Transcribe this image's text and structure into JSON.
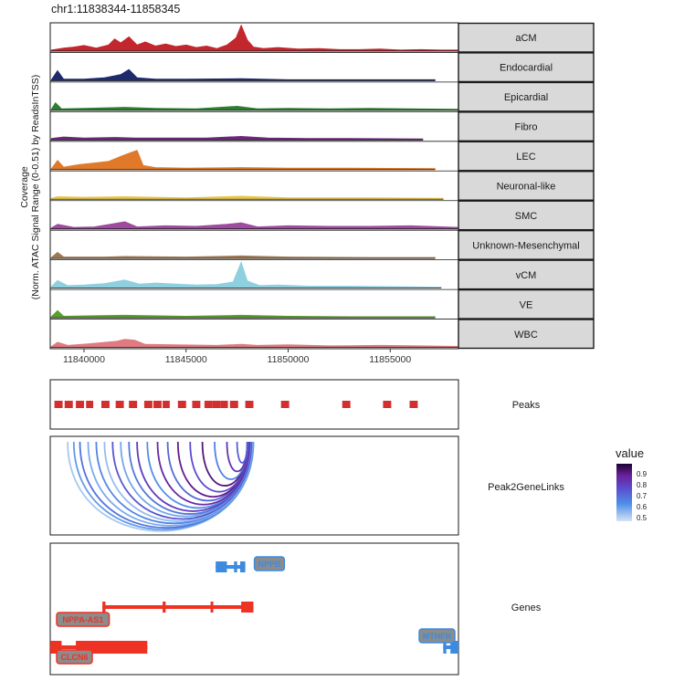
{
  "region_title": "chr1:11838344-11858345",
  "ylabel_line1": "Coverage",
  "ylabel_line2": "(Norm. ATAC Signal Range (0-0.51) by ReadsInTSS)",
  "x_ticks": [
    "11840000",
    "11845000",
    "11850000",
    "11855000"
  ],
  "panel_labels": {
    "peaks": "Peaks",
    "links": "Peak2GeneLinks",
    "genes": "Genes"
  },
  "legend": {
    "title": "value",
    "ticks": [
      "0.9",
      "0.8",
      "0.7",
      "0.6",
      "0.5"
    ]
  },
  "gene_labels": [
    "NPPB",
    "NPPA-AS1",
    "CLCN6",
    "MTHFR"
  ],
  "colors": {
    "aCM": "#c2272d",
    "Endocardial": "#1d2a6b",
    "Epicardial": "#2f7d32",
    "Fibro": "#6a2a7a",
    "LEC": "#e07a2a",
    "Neuronal-like": "#e6c64a",
    "SMC": "#9e4a9e",
    "Unknown-Mesenchymal": "#a07850",
    "vCM": "#8ecfe0",
    "VE": "#5aa02c",
    "WBC": "#e07a80",
    "peak": "#d32f2f",
    "gene_minus": "#ee3224",
    "gene_plus": "#3d8be0"
  },
  "chart_data": [
    {
      "type": "area",
      "title": "chr1:11838344-11858345",
      "xlabel": "",
      "ylabel": "Coverage (Norm. ATAC Signal Range (0-0.51) by ReadsInTSS)",
      "xlim": [
        11838344,
        11858345
      ],
      "ylim": [
        0,
        0.51
      ],
      "grid": false,
      "series": [
        {
          "name": "aCM",
          "points": [
            [
              11838400,
              0.02
            ],
            [
              11839000,
              0.06
            ],
            [
              11839500,
              0.08
            ],
            [
              11840000,
              0.11
            ],
            [
              11840600,
              0.06
            ],
            [
              11841200,
              0.12
            ],
            [
              11841500,
              0.24
            ],
            [
              11841800,
              0.16
            ],
            [
              11842200,
              0.28
            ],
            [
              11842600,
              0.12
            ],
            [
              11843000,
              0.18
            ],
            [
              11843500,
              0.1
            ],
            [
              11844000,
              0.14
            ],
            [
              11844500,
              0.09
            ],
            [
              11845000,
              0.12
            ],
            [
              11845500,
              0.07
            ],
            [
              11846000,
              0.1
            ],
            [
              11846500,
              0.05
            ],
            [
              11847000,
              0.12
            ],
            [
              11847450,
              0.26
            ],
            [
              11847700,
              0.51
            ],
            [
              11848000,
              0.22
            ],
            [
              11848300,
              0.08
            ],
            [
              11848800,
              0.05
            ],
            [
              11849500,
              0.07
            ],
            [
              11850500,
              0.04
            ],
            [
              11851500,
              0.05
            ],
            [
              11852500,
              0.03
            ],
            [
              11853500,
              0.03
            ],
            [
              11854500,
              0.04
            ],
            [
              11855500,
              0.02
            ],
            [
              11856500,
              0.03
            ],
            [
              11857500,
              0.02
            ],
            [
              11858300,
              0.02
            ]
          ]
        },
        {
          "name": "Endocardial",
          "points": [
            [
              11838400,
              0.02
            ],
            [
              11838700,
              0.2
            ],
            [
              11839000,
              0.03
            ],
            [
              11840000,
              0.03
            ],
            [
              11841000,
              0.06
            ],
            [
              11841800,
              0.12
            ],
            [
              11842200,
              0.22
            ],
            [
              11842600,
              0.06
            ],
            [
              11843500,
              0.03
            ],
            [
              11845000,
              0.03
            ],
            [
              11847700,
              0.04
            ],
            [
              11850000,
              0.02
            ],
            [
              11853000,
              0.02
            ],
            [
              11857200,
              0.02
            ]
          ]
        },
        {
          "name": "Epicardial",
          "points": [
            [
              11838400,
              0.02
            ],
            [
              11838600,
              0.15
            ],
            [
              11838900,
              0.03
            ],
            [
              11840000,
              0.04
            ],
            [
              11842000,
              0.06
            ],
            [
              11843500,
              0.04
            ],
            [
              11845500,
              0.03
            ],
            [
              11847500,
              0.08
            ],
            [
              11848500,
              0.03
            ],
            [
              11850000,
              0.04
            ],
            [
              11852000,
              0.03
            ],
            [
              11854000,
              0.04
            ],
            [
              11856000,
              0.03
            ],
            [
              11858300,
              0.02
            ]
          ]
        },
        {
          "name": "Fibro",
          "points": [
            [
              11838400,
              0.03
            ],
            [
              11839000,
              0.06
            ],
            [
              11840000,
              0.04
            ],
            [
              11841500,
              0.05
            ],
            [
              11842500,
              0.04
            ],
            [
              11844000,
              0.04
            ],
            [
              11846000,
              0.04
            ],
            [
              11847700,
              0.07
            ],
            [
              11849000,
              0.04
            ],
            [
              11851000,
              0.03
            ],
            [
              11853000,
              0.03
            ],
            [
              11856600,
              0.02
            ]
          ]
        },
        {
          "name": "LEC",
          "points": [
            [
              11838400,
              0.02
            ],
            [
              11838700,
              0.18
            ],
            [
              11839000,
              0.05
            ],
            [
              11839800,
              0.1
            ],
            [
              11840500,
              0.13
            ],
            [
              11841200,
              0.16
            ],
            [
              11841800,
              0.26
            ],
            [
              11842200,
              0.32
            ],
            [
              11842600,
              0.38
            ],
            [
              11842900,
              0.08
            ],
            [
              11843500,
              0.04
            ],
            [
              11845000,
              0.03
            ],
            [
              11847700,
              0.04
            ],
            [
              11850000,
              0.03
            ],
            [
              11853000,
              0.03
            ],
            [
              11857200,
              0.02
            ]
          ]
        },
        {
          "name": "Neuronal-like",
          "points": [
            [
              11838400,
              0.02
            ],
            [
              11838700,
              0.05
            ],
            [
              11840000,
              0.04
            ],
            [
              11842000,
              0.05
            ],
            [
              11845000,
              0.03
            ],
            [
              11847700,
              0.06
            ],
            [
              11850000,
              0.03
            ],
            [
              11854000,
              0.03
            ],
            [
              11857600,
              0.02
            ]
          ]
        },
        {
          "name": "SMC",
          "points": [
            [
              11838400,
              0.02
            ],
            [
              11838700,
              0.09
            ],
            [
              11839500,
              0.03
            ],
            [
              11840500,
              0.04
            ],
            [
              11842000,
              0.14
            ],
            [
              11842600,
              0.04
            ],
            [
              11844000,
              0.06
            ],
            [
              11845500,
              0.05
            ],
            [
              11847000,
              0.09
            ],
            [
              11847700,
              0.12
            ],
            [
              11848500,
              0.04
            ],
            [
              11850000,
              0.06
            ],
            [
              11852000,
              0.05
            ],
            [
              11854000,
              0.05
            ],
            [
              11856000,
              0.06
            ],
            [
              11858300,
              0.03
            ]
          ]
        },
        {
          "name": "Unknown-Mesenchymal",
          "points": [
            [
              11838400,
              0.02
            ],
            [
              11838700,
              0.12
            ],
            [
              11839000,
              0.03
            ],
            [
              11841000,
              0.03
            ],
            [
              11842000,
              0.04
            ],
            [
              11845000,
              0.03
            ],
            [
              11847700,
              0.05
            ],
            [
              11850000,
              0.03
            ],
            [
              11854000,
              0.02
            ],
            [
              11857200,
              0.02
            ]
          ]
        },
        {
          "name": "vCM",
          "points": [
            [
              11838400,
              0.03
            ],
            [
              11838700,
              0.15
            ],
            [
              11839200,
              0.05
            ],
            [
              11840000,
              0.06
            ],
            [
              11841000,
              0.09
            ],
            [
              11842000,
              0.16
            ],
            [
              11842700,
              0.08
            ],
            [
              11843500,
              0.1
            ],
            [
              11844500,
              0.08
            ],
            [
              11845500,
              0.06
            ],
            [
              11846500,
              0.07
            ],
            [
              11847300,
              0.12
            ],
            [
              11847700,
              0.51
            ],
            [
              11848000,
              0.14
            ],
            [
              11848600,
              0.05
            ],
            [
              11849500,
              0.06
            ],
            [
              11851000,
              0.04
            ],
            [
              11853000,
              0.04
            ],
            [
              11855000,
              0.03
            ],
            [
              11857500,
              0.02
            ]
          ]
        },
        {
          "name": "VE",
          "points": [
            [
              11838400,
              0.02
            ],
            [
              11838700,
              0.14
            ],
            [
              11839000,
              0.03
            ],
            [
              11840500,
              0.04
            ],
            [
              11842000,
              0.05
            ],
            [
              11845000,
              0.03
            ],
            [
              11847700,
              0.05
            ],
            [
              11850000,
              0.03
            ],
            [
              11853000,
              0.02
            ],
            [
              11857200,
              0.02
            ]
          ]
        },
        {
          "name": "WBC",
          "points": [
            [
              11838400,
              0.02
            ],
            [
              11838700,
              0.1
            ],
            [
              11839200,
              0.04
            ],
            [
              11840200,
              0.07
            ],
            [
              11841600,
              0.12
            ],
            [
              11842000,
              0.16
            ],
            [
              11842500,
              0.14
            ],
            [
              11843000,
              0.06
            ],
            [
              11844500,
              0.05
            ],
            [
              11846500,
              0.04
            ],
            [
              11847700,
              0.06
            ],
            [
              11848500,
              0.04
            ],
            [
              11850000,
              0.05
            ],
            [
              11852000,
              0.03
            ],
            [
              11854500,
              0.04
            ],
            [
              11856500,
              0.03
            ],
            [
              11858300,
              0.02
            ]
          ]
        }
      ]
    },
    {
      "type": "peaks",
      "title": "Peaks",
      "intervals": [
        [
          11838550,
          11838950
        ],
        [
          11839050,
          11839450
        ],
        [
          11839600,
          11840000
        ],
        [
          11840100,
          11840450
        ],
        [
          11840850,
          11841250
        ],
        [
          11841550,
          11841950
        ],
        [
          11842200,
          11842600
        ],
        [
          11842950,
          11843350
        ],
        [
          11843400,
          11843800
        ],
        [
          11843850,
          11844200
        ],
        [
          11844600,
          11845000
        ],
        [
          11845300,
          11845700
        ],
        [
          11845900,
          11846300
        ],
        [
          11846300,
          11846700
        ],
        [
          11846700,
          11847050
        ],
        [
          11847150,
          11847550
        ],
        [
          11847900,
          11848300
        ],
        [
          11849650,
          11850050
        ],
        [
          11852650,
          11853050
        ],
        [
          11854650,
          11855050
        ],
        [
          11855950,
          11856350
        ]
      ]
    },
    {
      "type": "links",
      "title": "Peak2GeneLinks",
      "color_scale": {
        "name": "value",
        "min": 0.45,
        "max": 0.95,
        "ticks": [
          0.5,
          0.6,
          0.7,
          0.8,
          0.9
        ]
      },
      "links": [
        {
          "start": 11839200,
          "end": 11848300,
          "value": 0.5
        },
        {
          "start": 11839500,
          "end": 11848300,
          "value": 0.58
        },
        {
          "start": 11839800,
          "end": 11848250,
          "value": 0.66
        },
        {
          "start": 11840200,
          "end": 11848250,
          "value": 0.55
        },
        {
          "start": 11840600,
          "end": 11848200,
          "value": 0.62
        },
        {
          "start": 11841000,
          "end": 11848200,
          "value": 0.52
        },
        {
          "start": 11841400,
          "end": 11848200,
          "value": 0.72
        },
        {
          "start": 11841800,
          "end": 11848150,
          "value": 0.56
        },
        {
          "start": 11842200,
          "end": 11848150,
          "value": 0.65
        },
        {
          "start": 11842600,
          "end": 11848100,
          "value": 0.78
        },
        {
          "start": 11843100,
          "end": 11848100,
          "value": 0.6
        },
        {
          "start": 11843600,
          "end": 11848100,
          "value": 0.82
        },
        {
          "start": 11844100,
          "end": 11848050,
          "value": 0.68
        },
        {
          "start": 11844600,
          "end": 11848050,
          "value": 0.86
        },
        {
          "start": 11845200,
          "end": 11848050,
          "value": 0.74
        },
        {
          "start": 11845800,
          "end": 11848000,
          "value": 0.88
        },
        {
          "start": 11846400,
          "end": 11848000,
          "value": 0.63
        },
        {
          "start": 11847000,
          "end": 11848000,
          "value": 0.8
        },
        {
          "start": 11847500,
          "end": 11848000,
          "value": 0.7
        }
      ]
    },
    {
      "type": "genes",
      "title": "Genes",
      "genes": [
        {
          "name": "NPPB",
          "strand": "+",
          "start": 11846450,
          "end": 11847900,
          "exons": [
            [
              11846450,
              11847000
            ],
            [
              11847350,
              11847500
            ],
            [
              11847650,
              11847900
            ]
          ],
          "row": 0
        },
        {
          "name": "NPPA-AS1",
          "strand": "-",
          "start": 11840900,
          "end": 11848300,
          "exons": [
            [
              11840900,
              11841050
            ],
            [
              11843850,
              11844000
            ],
            [
              11846200,
              11846300
            ],
            [
              11847700,
              11848300
            ]
          ],
          "row": 1
        },
        {
          "name": "CLCN6",
          "strand": "-",
          "start": 11838350,
          "end": 11843100,
          "exons": [
            [
              11838350,
              11838900
            ],
            [
              11839600,
              11843100
            ]
          ],
          "row": 2
        },
        {
          "name": "MTHFR",
          "strand": "+",
          "start": 11857600,
          "end": 11858345,
          "exons": [
            [
              11857600,
              11857750
            ],
            [
              11857950,
              11858345
            ]
          ],
          "row": 2
        }
      ]
    }
  ]
}
